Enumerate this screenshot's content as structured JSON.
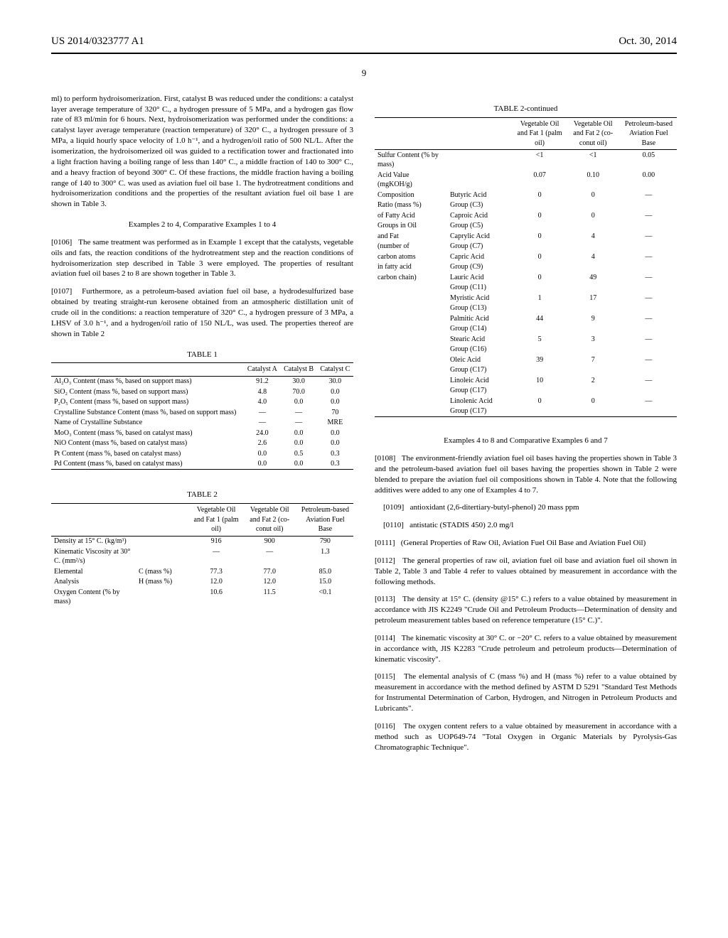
{
  "header": {
    "left": "US 2014/0323777 A1",
    "right": "Oct. 30, 2014"
  },
  "page_number": "9",
  "left_col": {
    "p1": "ml) to perform hydroisomerization. First, catalyst B was reduced under the conditions: a catalyst layer average temperature of 320° C., a hydrogen pressure of 5 MPa, and a hydrogen gas flow rate of 83 ml/min for 6 hours. Next, hydroisomerization was performed under the conditions: a catalyst layer average temperature (reaction temperature) of 320° C., a hydrogen pressure of 3 MPa, a liquid hourly space velocity of 1.0 h⁻¹, and a hydrogen/oil ratio of 500 NL/L. After the isomerization, the hydroisomerized oil was guided to a rectification tower and fractionated into a light fraction having a boiling range of less than 140° C., a middle fraction of 140 to 300° C., and a heavy fraction of beyond 300° C. Of these fractions, the middle fraction having a boiling range of 140 to 300° C. was used as aviation fuel oil base 1. The hydrotreatment conditions and hydroisomerization conditions and the properties of the resultant aviation fuel oil base 1 are shown in Table 3.",
    "h1": "Examples 2 to 4, Comparative Examples 1 to 4",
    "p2_num": "[0106]",
    "p2": "The same treatment was performed as in Example 1 except that the catalysts, vegetable oils and fats, the reaction conditions of the hydrotreatment step and the reaction conditions of hydroisomerization step described in Table 3 were employed. The properties of resultant aviation fuel oil bases 2 to 8 are shown together in Table 3.",
    "p3_num": "[0107]",
    "p3": "Furthermore, as a petroleum-based aviation fuel oil base, a hydrodesulfurized base obtained by treating straight-run kerosene obtained from an atmospheric distillation unit of crude oil in the conditions: a reaction temperature of 320° C., a hydrogen pressure of 3 MPa, a LHSV of 3.0 h⁻¹, and a hydrogen/oil ratio of 150 NL/L, was used. The properties thereof are shown in Table 2",
    "table1": {
      "title": "TABLE 1",
      "headers": [
        "",
        "Catalyst A",
        "Catalyst B",
        "Catalyst C"
      ],
      "rows": [
        {
          "label": "Al₂O₃ Content (mass %, based on support mass)",
          "a": "91.2",
          "b": "30.0",
          "c": "30.0"
        },
        {
          "label": "SiO₂ Content (mass %, based on support mass)",
          "a": "4.8",
          "b": "70.0",
          "c": "0.0"
        },
        {
          "label": "P₂O₅ Content (mass %, based on support mass)",
          "a": "4.0",
          "b": "0.0",
          "c": "0.0"
        },
        {
          "label": "Crystalline Substance Content (mass %, based on support mass)",
          "a": "—",
          "b": "—",
          "c": "70"
        },
        {
          "label": "Name of Crystalline Substance",
          "a": "—",
          "b": "—",
          "c": "MRE"
        },
        {
          "label": "MoO₃ Content (mass %, based on catalyst mass)",
          "a": "24.0",
          "b": "0.0",
          "c": "0.0"
        },
        {
          "label": "NiO Content (mass %, based on catalyst mass)",
          "a": "2.6",
          "b": "0.0",
          "c": "0.0"
        },
        {
          "label": "Pt Content (mass %, based on catalyst mass)",
          "a": "0.0",
          "b": "0.5",
          "c": "0.3"
        },
        {
          "label": "Pd Content (mass %, based on catalyst mass)",
          "a": "0.0",
          "b": "0.0",
          "c": "0.3"
        }
      ]
    },
    "table2": {
      "title": "TABLE 2",
      "headers": [
        "",
        "",
        "Vegetable Oil and Fat 1 (palm oil)",
        "Vegetable Oil and Fat 2 (co-conut oil)",
        "Petroleum-based Aviation Fuel Base"
      ],
      "rows": [
        {
          "l1": "Density at 15° C. (kg/m³)",
          "l2": "",
          "v1": "916",
          "v2": "900",
          "v3": "790"
        },
        {
          "l1": "Kinematic Viscosity at 30° C. (mm²/s)",
          "l2": "",
          "v1": "—",
          "v2": "—",
          "v3": "1.3"
        },
        {
          "l1": "Elemental",
          "l2": "C (mass %)",
          "v1": "77.3",
          "v2": "77.0",
          "v3": "85.0"
        },
        {
          "l1": "Analysis",
          "l2": "H (mass %)",
          "v1": "12.0",
          "v2": "12.0",
          "v3": "15.0"
        },
        {
          "l1": "Oxygen Content (% by mass)",
          "l2": "",
          "v1": "10.6",
          "v2": "11.5",
          "v3": "<0.1"
        }
      ]
    }
  },
  "right_col": {
    "table2c": {
      "title": "TABLE 2-continued",
      "headers": [
        "",
        "",
        "Vegetable Oil and Fat 1 (palm oil)",
        "Vegetable Oil and Fat 2 (co-conut oil)",
        "Petroleum-based Aviation Fuel Base"
      ],
      "rows": [
        {
          "l1": "Sulfur Content (% by mass)",
          "l2": "",
          "v1": "<1",
          "v2": "<1",
          "v3": "0.05"
        },
        {
          "l1": "Acid Value (mgKOH/g)",
          "l2": "",
          "v1": "0.07",
          "v2": "0.10",
          "v3": "0.00"
        },
        {
          "l1": "Composition",
          "l2": "Butyric Acid",
          "v1": "0",
          "v2": "0",
          "v3": "—"
        },
        {
          "l1": "Ratio (mass %)",
          "l2": "Group (C3)",
          "v1": "",
          "v2": "",
          "v3": ""
        },
        {
          "l1": "of Fatty Acid",
          "l2": "Caproic Acid",
          "v1": "0",
          "v2": "0",
          "v3": "—"
        },
        {
          "l1": "Groups in Oil",
          "l2": "Group (C5)",
          "v1": "",
          "v2": "",
          "v3": ""
        },
        {
          "l1": "and Fat",
          "l2": "Caprylic Acid",
          "v1": "0",
          "v2": "4",
          "v3": "—"
        },
        {
          "l1": "(number of",
          "l2": "Group (C7)",
          "v1": "",
          "v2": "",
          "v3": ""
        },
        {
          "l1": "carbon atoms",
          "l2": "Capric Acid",
          "v1": "0",
          "v2": "4",
          "v3": "—"
        },
        {
          "l1": "in fatty acid",
          "l2": "Group (C9)",
          "v1": "",
          "v2": "",
          "v3": ""
        },
        {
          "l1": "carbon chain)",
          "l2": "Lauric Acid",
          "v1": "0",
          "v2": "49",
          "v3": "—"
        },
        {
          "l1": "",
          "l2": "Group (C11)",
          "v1": "",
          "v2": "",
          "v3": ""
        },
        {
          "l1": "",
          "l2": "Myristic Acid",
          "v1": "1",
          "v2": "17",
          "v3": "—"
        },
        {
          "l1": "",
          "l2": "Group (C13)",
          "v1": "",
          "v2": "",
          "v3": ""
        },
        {
          "l1": "",
          "l2": "Palmitic Acid",
          "v1": "44",
          "v2": "9",
          "v3": "—"
        },
        {
          "l1": "",
          "l2": "Group (C14)",
          "v1": "",
          "v2": "",
          "v3": ""
        },
        {
          "l1": "",
          "l2": "Stearic Acid",
          "v1": "5",
          "v2": "3",
          "v3": "—"
        },
        {
          "l1": "",
          "l2": "Group (C16)",
          "v1": "",
          "v2": "",
          "v3": ""
        },
        {
          "l1": "",
          "l2": "Oleic Acid",
          "v1": "39",
          "v2": "7",
          "v3": "—"
        },
        {
          "l1": "",
          "l2": "Group (C17)",
          "v1": "",
          "v2": "",
          "v3": ""
        },
        {
          "l1": "",
          "l2": "Linoleic Acid",
          "v1": "10",
          "v2": "2",
          "v3": "—"
        },
        {
          "l1": "",
          "l2": "Group (C17)",
          "v1": "",
          "v2": "",
          "v3": ""
        },
        {
          "l1": "",
          "l2": "Linolenic Acid",
          "v1": "0",
          "v2": "0",
          "v3": "—"
        },
        {
          "l1": "",
          "l2": "Group (C17)",
          "v1": "",
          "v2": "",
          "v3": ""
        }
      ]
    },
    "h2": "Examples 4 to 8 and Comparative Examples 6 and 7",
    "p108_num": "[0108]",
    "p108": "The environment-friendly aviation fuel oil bases having the properties shown in Table 3 and the petroleum-based aviation fuel oil bases having the properties shown in Table 2 were blended to prepare the aviation fuel oil compositions shown in Table 4. Note that the following additives were added to any one of Examples 4 to 7.",
    "p109_num": "[0109]",
    "p109": "antioxidant (2,6-ditertiary-butyl-phenol) 20 mass ppm",
    "p110_num": "[0110]",
    "p110": "antistatic (STADIS 450) 2.0 mg/l",
    "p111_num": "[0111]",
    "p111": "(General Properties of Raw Oil, Aviation Fuel Oil Base and Aviation Fuel Oil)",
    "p112_num": "[0112]",
    "p112": "The general properties of raw oil, aviation fuel oil base and aviation fuel oil shown in Table 2, Table 3 and Table 4 refer to values obtained by measurement in accordance with the following methods.",
    "p113_num": "[0113]",
    "p113": "The density at 15° C. (density @15° C.) refers to a value obtained by measurement in accordance with JIS K2249 \"Crude Oil and Petroleum Products—Determination of density and petroleum measurement tables based on reference temperature (15° C.)\".",
    "p114_num": "[0114]",
    "p114": "The kinematic viscosity at 30° C. or −20° C. refers to a value obtained by measurement in accordance with, JIS K2283 \"Crude petroleum and petroleum products—Determination of kinematic viscosity\".",
    "p115_num": "[0115]",
    "p115": "The elemental analysis of C (mass %) and H (mass %) refer to a value obtained by measurement in accordance with the method defined by ASTM D 5291 \"Standard Test Methods for Instrumental Determination of Carbon, Hydrogen, and Nitrogen in Petroleum Products and Lubricants\".",
    "p116_num": "[0116]",
    "p116": "The oxygen content refers to a value obtained by measurement in accordance with a method such as UOP649-74 \"Total Oxygen in Organic Materials by Pyrolysis-Gas Chromatographic Technique\"."
  }
}
